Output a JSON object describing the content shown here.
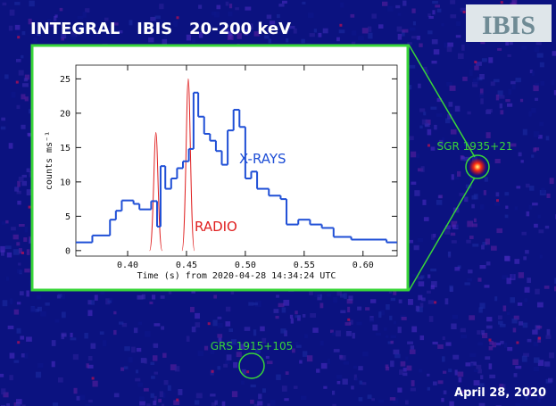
{
  "slide": {
    "title": "INTEGRAL   IBIS   20-200 keV",
    "logo": "IBIS",
    "sources": [
      "SGR 1935+21",
      "GRS 1915+105"
    ],
    "date": "April 28, 2020"
  },
  "chart_data": {
    "type": "step",
    "xlabel": "Time (s) from 2020-04-28 14:34:24 UTC",
    "ylabel": "counts ms⁻¹",
    "xlim": [
      0.356,
      0.629
    ],
    "ylim": [
      -0.8,
      27
    ],
    "xticks": [
      {
        "value": 0.4,
        "label": "0.40"
      },
      {
        "value": 0.45,
        "label": "0.45"
      },
      {
        "value": 0.5,
        "label": "0.50"
      },
      {
        "value": 0.55,
        "label": "0.55"
      },
      {
        "value": 0.6,
        "label": "0.60"
      }
    ],
    "yticks": [
      0,
      5,
      10,
      15,
      20,
      25
    ],
    "series": [
      {
        "name": "X-RAYS",
        "color": "#1f4fd6",
        "bins": [
          0.356,
          0.37,
          0.385,
          0.39,
          0.395,
          0.405,
          0.41,
          0.42,
          0.425,
          0.428,
          0.432,
          0.437,
          0.442,
          0.447,
          0.452,
          0.456,
          0.46,
          0.465,
          0.47,
          0.475,
          0.48,
          0.485,
          0.49,
          0.495,
          0.5,
          0.505,
          0.51,
          0.52,
          0.53,
          0.535,
          0.545,
          0.555,
          0.565,
          0.575,
          0.59,
          0.62,
          0.629
        ],
        "values": [
          1.2,
          2.2,
          4.5,
          5.8,
          7.3,
          6.8,
          6.0,
          7.2,
          3.5,
          12.3,
          9.0,
          10.5,
          12.0,
          13.0,
          14.8,
          23.0,
          19.5,
          17.0,
          16.0,
          14.5,
          12.5,
          17.5,
          20.5,
          18.0,
          10.5,
          11.5,
          9.0,
          8.0,
          7.5,
          3.8,
          4.5,
          3.8,
          3.3,
          2.0,
          1.6,
          1.2
        ]
      },
      {
        "name": "RADIO",
        "color": "#e02020",
        "x": [
          0.424,
          0.4515
        ],
        "values": [
          17.2,
          25
        ]
      }
    ]
  }
}
